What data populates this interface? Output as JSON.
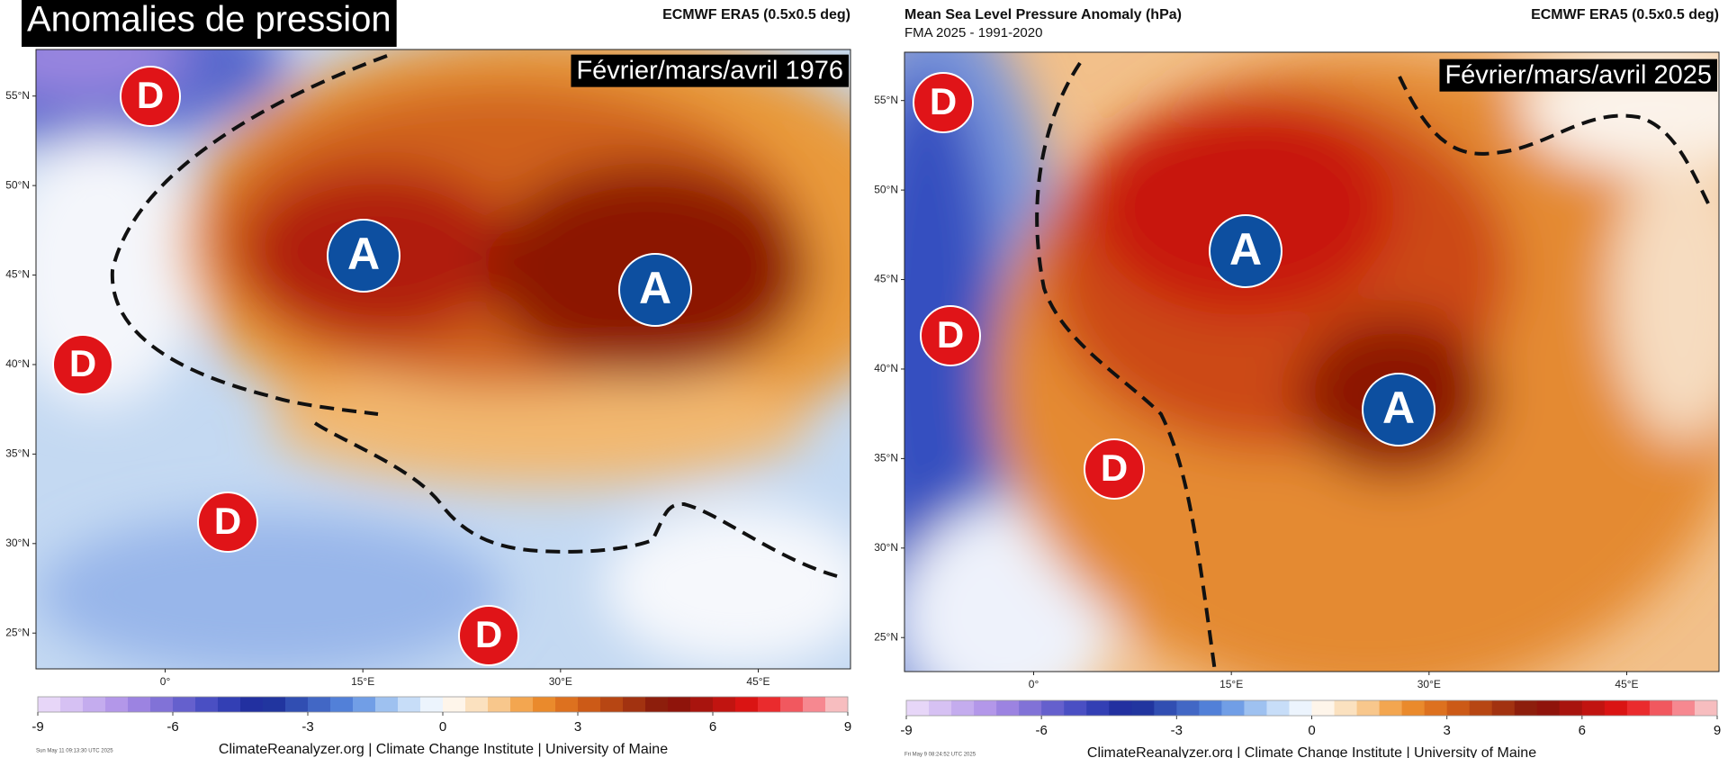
{
  "panels": [
    {
      "title": "Anomalies de pression",
      "source": "ECMWF ERA5 (0.5x0.5 deg)",
      "period": "Février/mars/avril 1976",
      "lat_range": [
        23,
        57.6
      ],
      "lon_range": [
        -9.8,
        52
      ],
      "lat_ticks": [
        {
          "value": 55,
          "label": "55°N"
        },
        {
          "value": 50,
          "label": "50°N"
        },
        {
          "value": 45,
          "label": "45°N"
        },
        {
          "value": 40,
          "label": "40°N"
        },
        {
          "value": 35,
          "label": "35°N"
        },
        {
          "value": 30,
          "label": "30°N"
        },
        {
          "value": 25,
          "label": "25°N"
        }
      ],
      "lon_ticks": [
        {
          "value": 0,
          "label": "0°"
        },
        {
          "value": 15,
          "label": "15°E"
        },
        {
          "value": 30,
          "label": "30°E"
        },
        {
          "value": 45,
          "label": "45°E"
        }
      ],
      "colorbar": {
        "range": [
          -9,
          9
        ],
        "ticks": [
          -9,
          -6,
          -3,
          0,
          3,
          6,
          9
        ]
      },
      "markers": [
        "D",
        "D",
        "D",
        "D",
        "A",
        "A"
      ],
      "timestamp": "Sun May 11 09:13:30 UTC 2025",
      "footer": "ClimateReanalyzer.org | Climate Change Institute | University of Maine"
    },
    {
      "title": "Mean Sea Level Pressure Anomaly (hPa)",
      "subtitle": "FMA 2025 - 1991-2020",
      "source": "ECMWF ERA5 (0.5x0.5 deg)",
      "period": "Février/mars/avril 2025",
      "lat_range": [
        23.1,
        57.7
      ],
      "lon_range": [
        -9.8,
        52
      ],
      "lat_ticks": [
        {
          "value": 55,
          "label": "55°N"
        },
        {
          "value": 50,
          "label": "50°N"
        },
        {
          "value": 45,
          "label": "45°N"
        },
        {
          "value": 40,
          "label": "40°N"
        },
        {
          "value": 35,
          "label": "35°N"
        },
        {
          "value": 30,
          "label": "30°N"
        },
        {
          "value": 25,
          "label": "25°N"
        }
      ],
      "lon_ticks": [
        {
          "value": 0,
          "label": "0°"
        },
        {
          "value": 15,
          "label": "15°E"
        },
        {
          "value": 30,
          "label": "30°E"
        },
        {
          "value": 45,
          "label": "45°E"
        }
      ],
      "colorbar": {
        "range": [
          -9,
          9
        ],
        "ticks": [
          -9,
          -6,
          -3,
          0,
          3,
          6,
          9
        ]
      },
      "markers": [
        "D",
        "D",
        "D",
        "A",
        "A"
      ],
      "timestamp": "Fri May  9 08:24:52 UTC 2025",
      "footer": "ClimateReanalyzer.org | Climate Change Institute | University of Maine"
    }
  ]
}
